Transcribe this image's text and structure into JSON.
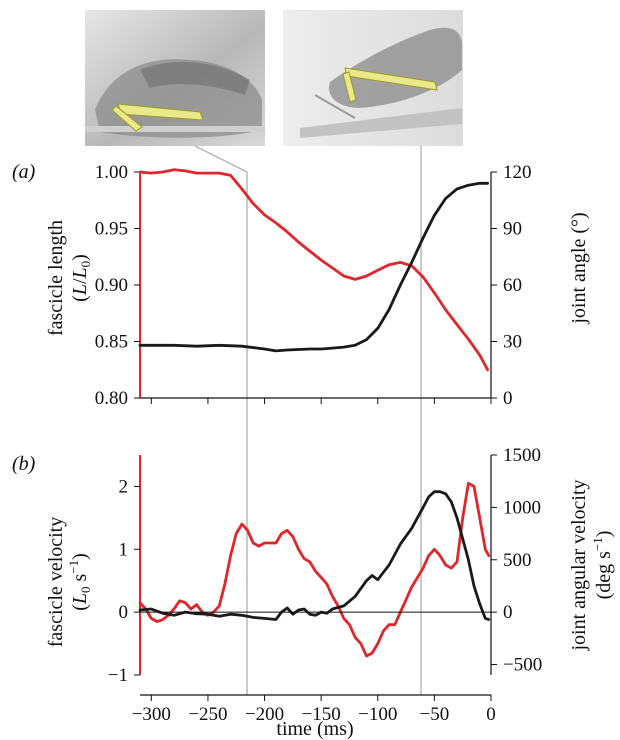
{
  "panels": {
    "a_label": "(a)",
    "b_label": "(b)"
  },
  "colors": {
    "fascicle": "#e0262b",
    "joint": "#1a1a1a",
    "guide": "#a6a6a6"
  },
  "photos": [
    {
      "name": "left-xray-photo",
      "description_icon": "foot-xray-icon"
    },
    {
      "name": "right-xray-photo",
      "description_icon": "foot-xray-icon"
    }
  ],
  "chart_data": [
    {
      "type": "line",
      "panel": "a",
      "left_ylabel": "fascicle length",
      "left_ylabel_units": "(L/L0)",
      "right_ylabel": "joint angle (°)",
      "ylim_left": [
        0.8,
        1.0
      ],
      "ylim_right": [
        0,
        120
      ],
      "left_ticks": [
        "0.80",
        "0.85",
        "0.90",
        "0.95",
        "1.00"
      ],
      "right_ticks": [
        "0",
        "30",
        "60",
        "90",
        "120"
      ],
      "xlim": [
        -310,
        0
      ],
      "series": [
        {
          "axis": "left",
          "color": "#e0262b",
          "x": [
            -310,
            -300,
            -290,
            -280,
            -270,
            -260,
            -250,
            -240,
            -230,
            -220,
            -210,
            -200,
            -190,
            -180,
            -170,
            -160,
            -150,
            -140,
            -130,
            -120,
            -110,
            -100,
            -90,
            -80,
            -70,
            -60,
            -50,
            -40,
            -30,
            -20,
            -10,
            -3
          ],
          "y": [
            1.0,
            0.999,
            1.0,
            1.002,
            1.001,
            0.999,
            0.999,
            0.999,
            0.997,
            0.985,
            0.972,
            0.962,
            0.955,
            0.947,
            0.938,
            0.93,
            0.922,
            0.915,
            0.908,
            0.905,
            0.908,
            0.913,
            0.918,
            0.92,
            0.917,
            0.907,
            0.893,
            0.878,
            0.865,
            0.852,
            0.838,
            0.825
          ]
        },
        {
          "axis": "right",
          "color": "#1a1a1a",
          "x": [
            -310,
            -280,
            -260,
            -240,
            -220,
            -200,
            -190,
            -180,
            -160,
            -150,
            -140,
            -130,
            -120,
            -110,
            -100,
            -90,
            -80,
            -70,
            -60,
            -50,
            -40,
            -30,
            -20,
            -10,
            -5,
            -3
          ],
          "y": [
            28,
            28,
            27.5,
            28,
            27.5,
            26,
            25,
            25.5,
            26,
            26,
            26.5,
            27,
            28,
            31,
            37,
            47,
            60,
            72,
            85,
            97,
            106,
            111,
            113,
            114,
            114,
            114
          ]
        }
      ]
    },
    {
      "type": "line",
      "panel": "b",
      "left_ylabel": "fascicle velocity",
      "left_ylabel_units": "(L0 s−1)",
      "right_ylabel": "joint angular velocity",
      "right_ylabel_units": "(deg s−1)",
      "xlabel": "time (ms)",
      "ylim_left": [
        -1.0,
        2.5
      ],
      "ylim_right": [
        -600,
        1500
      ],
      "left_ticks": [
        "−1",
        "0",
        "1",
        "2"
      ],
      "right_ticks": [
        "−500",
        "0",
        "500",
        "1000",
        "1500"
      ],
      "x_ticks": [
        "−300",
        "−250",
        "−200",
        "−150",
        "−100",
        "−50",
        "0"
      ],
      "xlim": [
        -310,
        0
      ],
      "series": [
        {
          "axis": "left",
          "color": "#e0262b",
          "x": [
            -310,
            -305,
            -300,
            -295,
            -290,
            -285,
            -280,
            -275,
            -270,
            -265,
            -260,
            -255,
            -250,
            -245,
            -240,
            -235,
            -230,
            -225,
            -220,
            -215,
            -210,
            -205,
            -200,
            -195,
            -190,
            -185,
            -180,
            -175,
            -170,
            -165,
            -160,
            -155,
            -150,
            -145,
            -140,
            -135,
            -130,
            -125,
            -120,
            -115,
            -110,
            -105,
            -100,
            -95,
            -90,
            -85,
            -80,
            -75,
            -70,
            -65,
            -60,
            -55,
            -50,
            -45,
            -40,
            -35,
            -30,
            -25,
            -20,
            -15,
            -10,
            -5,
            -2
          ],
          "y": [
            0.15,
            0.05,
            -0.1,
            -0.15,
            -0.12,
            -0.05,
            0.05,
            0.18,
            0.15,
            0.05,
            0.12,
            0.0,
            -0.05,
            0.0,
            0.1,
            0.45,
            0.9,
            1.25,
            1.4,
            1.3,
            1.1,
            1.05,
            1.1,
            1.1,
            1.1,
            1.25,
            1.3,
            1.2,
            1.0,
            0.85,
            0.8,
            0.65,
            0.55,
            0.45,
            0.25,
            0.1,
            -0.1,
            -0.2,
            -0.4,
            -0.5,
            -0.7,
            -0.65,
            -0.5,
            -0.3,
            -0.2,
            -0.2,
            0.0,
            0.2,
            0.4,
            0.55,
            0.7,
            0.9,
            1.0,
            0.9,
            0.75,
            0.7,
            0.8,
            1.5,
            2.05,
            2.0,
            1.5,
            1.0,
            0.9
          ]
        },
        {
          "axis": "right",
          "color": "#1a1a1a",
          "x": [
            -310,
            -300,
            -290,
            -280,
            -270,
            -260,
            -250,
            -240,
            -230,
            -220,
            -210,
            -200,
            -190,
            -185,
            -180,
            -175,
            -170,
            -165,
            -160,
            -155,
            -150,
            -145,
            -140,
            -130,
            -120,
            -110,
            -105,
            -100,
            -95,
            -90,
            -80,
            -70,
            -60,
            -55,
            -50,
            -45,
            -40,
            -35,
            -30,
            -25,
            -20,
            -15,
            -10,
            -5,
            -2
          ],
          "y": [
            20,
            30,
            -10,
            -30,
            0,
            -15,
            -20,
            -40,
            -20,
            -30,
            -50,
            -60,
            -70,
            0,
            40,
            -20,
            20,
            30,
            -20,
            -30,
            0,
            -10,
            30,
            60,
            150,
            300,
            350,
            310,
            380,
            450,
            650,
            800,
            1000,
            1100,
            1150,
            1150,
            1130,
            1050,
            900,
            700,
            500,
            250,
            80,
            -60,
            -70
          ]
        }
      ]
    }
  ]
}
